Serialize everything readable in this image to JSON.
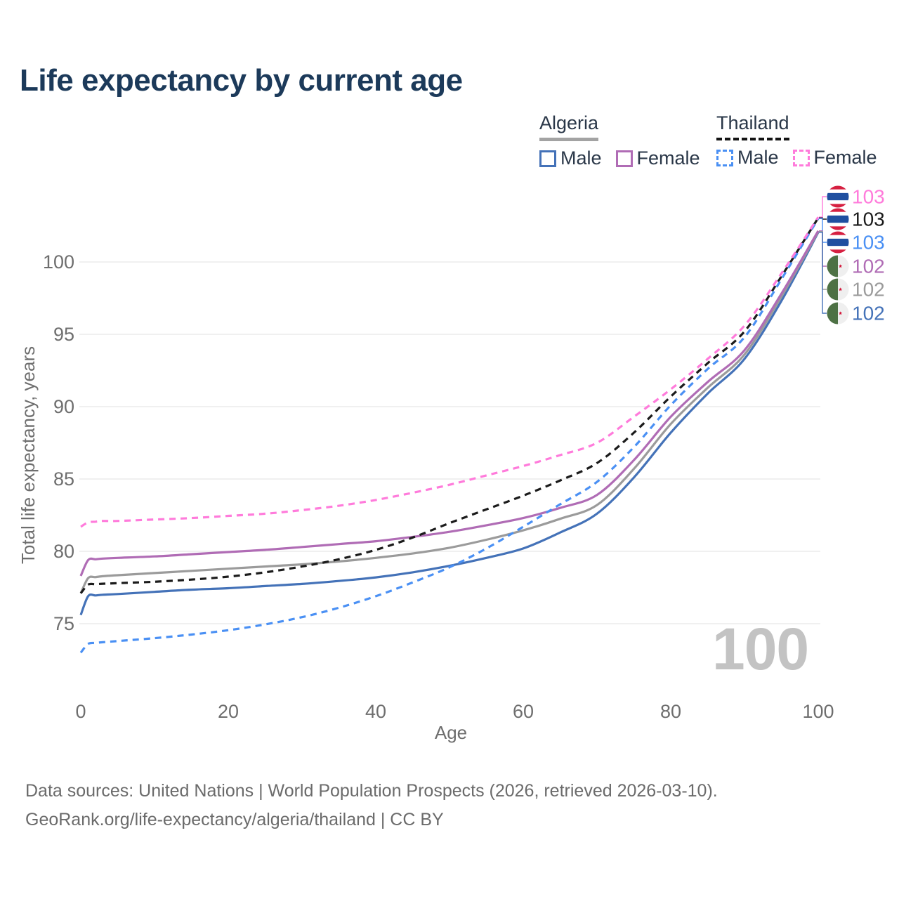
{
  "header": {
    "title": "Life expectancy by current age"
  },
  "legend": {
    "groups": [
      {
        "name": "Algeria",
        "line_style": "solid",
        "underline_color": "#a3a3a3",
        "items": [
          {
            "label": "Male",
            "color": "#4472b8",
            "dashed": false
          },
          {
            "label": "Female",
            "color": "#b06cb5",
            "dashed": false
          }
        ]
      },
      {
        "name": "Thailand",
        "line_style": "dashed",
        "underline_color": "#141414",
        "items": [
          {
            "label": "Male",
            "color": "#4a90f4",
            "dashed": true
          },
          {
            "label": "Female",
            "color": "#ff7bdb",
            "dashed": true
          }
        ]
      }
    ]
  },
  "chart_data": {
    "type": "line",
    "title": "Life expectancy by current age",
    "xlabel": "Age",
    "ylabel": "Total life expectancy, years",
    "x_ticks": [
      0,
      20,
      40,
      60,
      80,
      100
    ],
    "y_ticks": [
      75,
      80,
      85,
      90,
      95,
      100
    ],
    "xlim": [
      0,
      100
    ],
    "ylim": [
      71,
      105
    ],
    "grid": "horizontal",
    "legend_position": "top-right",
    "ages": [
      0,
      1,
      2,
      3,
      5,
      10,
      15,
      20,
      25,
      30,
      35,
      40,
      45,
      50,
      55,
      60,
      65,
      70,
      75,
      80,
      85,
      90,
      95,
      100
    ],
    "series": [
      {
        "name": "Thailand Female",
        "country": "Thailand",
        "sex": "Female",
        "style": "dashed",
        "color": "#ff7bdb",
        "flag": "thailand",
        "end_label": "103",
        "values": [
          81.7,
          82.0,
          82.05,
          82.1,
          82.1,
          82.2,
          82.3,
          82.45,
          82.6,
          82.85,
          83.15,
          83.55,
          84.05,
          84.6,
          85.25,
          85.9,
          86.65,
          87.5,
          89.3,
          91.2,
          93.3,
          95.6,
          99.2,
          103.1
        ]
      },
      {
        "name": "Thailand Both sexes",
        "country": "Thailand",
        "sex": "Both sexes",
        "style": "dashed",
        "color": "#1b1b1b",
        "flag": "thailand",
        "end_label": "103",
        "values": [
          77.1,
          77.7,
          77.73,
          77.76,
          77.8,
          77.9,
          78.05,
          78.25,
          78.55,
          78.95,
          79.45,
          80.1,
          80.95,
          81.95,
          82.9,
          83.85,
          84.9,
          86.1,
          88.2,
          90.7,
          93.0,
          95.2,
          99.0,
          103.05
        ]
      },
      {
        "name": "Thailand Male",
        "country": "Thailand",
        "sex": "Male",
        "style": "dashed",
        "color": "#4a90f4",
        "flag": "thailand",
        "end_label": "103",
        "values": [
          73.0,
          73.6,
          73.67,
          73.72,
          73.8,
          74.0,
          74.25,
          74.55,
          74.95,
          75.45,
          76.1,
          76.9,
          77.85,
          78.9,
          80.2,
          81.7,
          83.25,
          84.8,
          87.2,
          90.1,
          92.6,
          94.8,
          98.8,
          103.0
        ]
      },
      {
        "name": "Algeria Female",
        "country": "Algeria",
        "sex": "Female",
        "style": "solid",
        "color": "#b06cb5",
        "flag": "algeria",
        "end_label": "102",
        "values": [
          78.3,
          79.4,
          79.45,
          79.5,
          79.55,
          79.65,
          79.8,
          79.95,
          80.1,
          80.3,
          80.5,
          80.7,
          81.0,
          81.35,
          81.8,
          82.3,
          83.0,
          83.9,
          86.3,
          89.3,
          91.7,
          93.9,
          97.8,
          102.15
        ]
      },
      {
        "name": "Algeria Both sexes",
        "country": "Algeria",
        "sex": "Both sexes",
        "style": "solid",
        "color": "#9b9b9b",
        "flag": "algeria",
        "end_label": "102",
        "values": [
          77.1,
          78.15,
          78.22,
          78.28,
          78.35,
          78.5,
          78.65,
          78.8,
          78.95,
          79.1,
          79.3,
          79.55,
          79.85,
          80.25,
          80.8,
          81.45,
          82.25,
          83.2,
          85.7,
          88.8,
          91.3,
          93.6,
          97.6,
          102.1
        ]
      },
      {
        "name": "Algeria Male",
        "country": "Algeria",
        "sex": "Male",
        "style": "solid",
        "color": "#4472b8",
        "flag": "algeria",
        "end_label": "102",
        "values": [
          75.6,
          76.9,
          76.95,
          77.0,
          77.05,
          77.2,
          77.35,
          77.45,
          77.6,
          77.75,
          77.95,
          78.2,
          78.55,
          79.0,
          79.55,
          80.2,
          81.3,
          82.6,
          85.1,
          88.2,
          90.9,
          93.3,
          97.3,
          102.05
        ]
      }
    ]
  },
  "watermark": "100",
  "footer": {
    "line1": "Data sources: United Nations | World Population Prospects (2026, retrieved 2026-03-10).",
    "line2": "GeoRank.org/life-expectancy/algeria/thailand | CC BY"
  }
}
